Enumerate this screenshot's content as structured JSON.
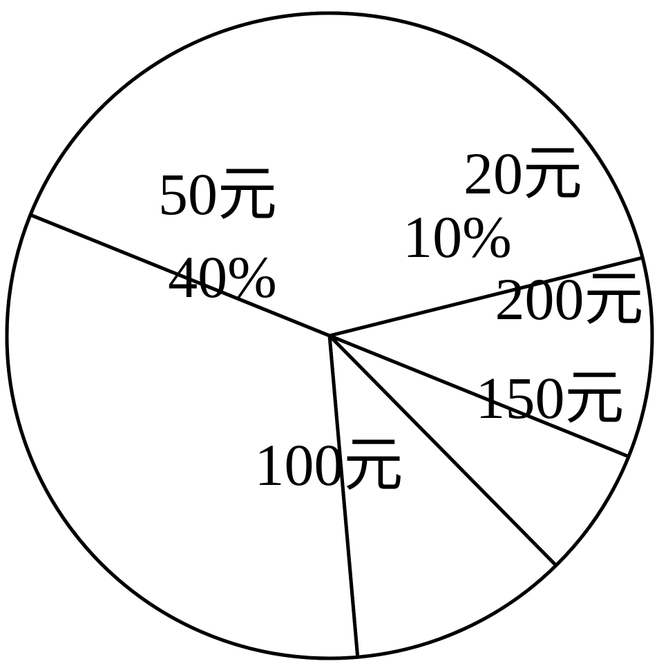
{
  "chart_data": {
    "type": "pie",
    "title": "",
    "slices": [
      {
        "label": "50元",
        "value": 40,
        "value_text": "40%"
      },
      {
        "label": "20元",
        "value": 10,
        "value_text": "10%"
      },
      {
        "label": "200元",
        "value": 6.5,
        "value_text": ""
      },
      {
        "label": "150元",
        "value": 11,
        "value_text": ""
      },
      {
        "label": "100元",
        "value": 32.5,
        "value_text": ""
      }
    ],
    "colors": {
      "stroke": "#000000",
      "fill": "#ffffff"
    }
  }
}
